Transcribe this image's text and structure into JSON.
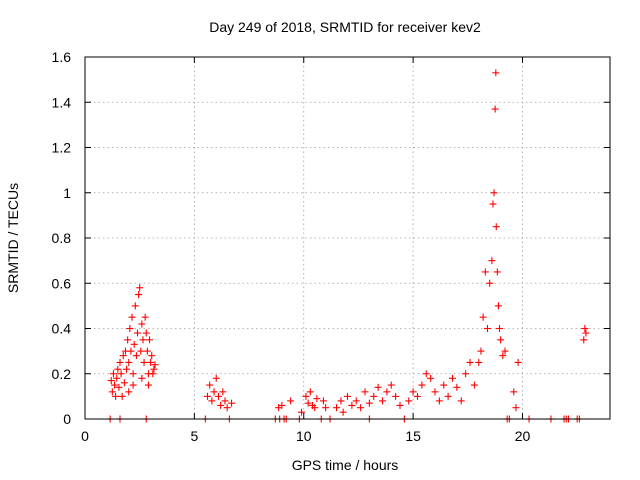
{
  "chart_data": {
    "type": "scatter",
    "title": "Day 249 of 2018, SRMTID for receiver kev2",
    "xlabel": "GPS time / hours",
    "ylabel": "SRMTID / TECUs",
    "xlim": [
      0,
      24
    ],
    "ylim": [
      0,
      1.6
    ],
    "x_ticks": [
      0,
      5,
      10,
      15,
      20
    ],
    "x_tick_labels": [
      "0",
      "5",
      "10",
      "15",
      "20"
    ],
    "y_ticks": [
      0,
      0.2,
      0.4,
      0.6,
      0.8,
      1.0,
      1.2,
      1.4,
      1.6
    ],
    "y_tick_labels": [
      "0",
      "0.2",
      "0.4",
      "0.6",
      "0.8",
      "1",
      "1.2",
      "1.4",
      "1.6"
    ],
    "grid": true,
    "marker": "+",
    "color": "#ff0000",
    "series": [
      {
        "name": "kev2",
        "points": [
          [
            1.15,
            0.0
          ],
          [
            1.2,
            0.17
          ],
          [
            1.25,
            0.12
          ],
          [
            1.3,
            0.2
          ],
          [
            1.35,
            0.15
          ],
          [
            1.4,
            0.1
          ],
          [
            1.45,
            0.18
          ],
          [
            1.5,
            0.22
          ],
          [
            1.55,
            0.14
          ],
          [
            1.6,
            0.0
          ],
          [
            1.6,
            0.25
          ],
          [
            1.65,
            0.2
          ],
          [
            1.7,
            0.1
          ],
          [
            1.75,
            0.28
          ],
          [
            1.8,
            0.16
          ],
          [
            1.85,
            0.3
          ],
          [
            1.9,
            0.22
          ],
          [
            1.95,
            0.35
          ],
          [
            2.0,
            0.25
          ],
          [
            2.05,
            0.4
          ],
          [
            2.1,
            0.3
          ],
          [
            2.15,
            0.45
          ],
          [
            2.2,
            0.2
          ],
          [
            2.25,
            0.33
          ],
          [
            2.3,
            0.5
          ],
          [
            2.35,
            0.28
          ],
          [
            2.4,
            0.38
          ],
          [
            2.45,
            0.55
          ],
          [
            2.5,
            0.58
          ],
          [
            2.55,
            0.3
          ],
          [
            2.6,
            0.42
          ],
          [
            2.65,
            0.35
          ],
          [
            2.7,
            0.25
          ],
          [
            2.75,
            0.45
          ],
          [
            2.8,
            0.0
          ],
          [
            2.8,
            0.38
          ],
          [
            2.85,
            0.3
          ],
          [
            2.9,
            0.2
          ],
          [
            2.95,
            0.35
          ],
          [
            3.0,
            0.25
          ],
          [
            3.05,
            0.28
          ],
          [
            3.1,
            0.2
          ],
          [
            3.15,
            0.22
          ],
          [
            3.2,
            0.24
          ],
          [
            2.0,
            0.12
          ],
          [
            2.2,
            0.15
          ],
          [
            2.6,
            0.18
          ],
          [
            2.9,
            0.15
          ],
          [
            5.5,
            0.0
          ],
          [
            5.6,
            0.1
          ],
          [
            5.7,
            0.15
          ],
          [
            5.8,
            0.08
          ],
          [
            5.9,
            0.12
          ],
          [
            6.0,
            0.18
          ],
          [
            6.1,
            0.1
          ],
          [
            6.2,
            0.06
          ],
          [
            6.3,
            0.12
          ],
          [
            6.4,
            0.08
          ],
          [
            6.5,
            0.05
          ],
          [
            6.6,
            0.0
          ],
          [
            6.7,
            0.07
          ],
          [
            8.7,
            0.0
          ],
          [
            8.85,
            0.05
          ],
          [
            8.9,
            0.0
          ],
          [
            9.0,
            0.06
          ],
          [
            9.1,
            0.0
          ],
          [
            9.2,
            0.0
          ],
          [
            9.4,
            0.08
          ],
          [
            9.8,
            0.0
          ],
          [
            9.9,
            0.03
          ],
          [
            10.1,
            0.1
          ],
          [
            10.2,
            0.07
          ],
          [
            10.3,
            0.12
          ],
          [
            10.4,
            0.06
          ],
          [
            10.5,
            0.05
          ],
          [
            10.6,
            0.09
          ],
          [
            10.8,
            0.0
          ],
          [
            10.9,
            0.08
          ],
          [
            11.0,
            0.05
          ],
          [
            11.2,
            0.0
          ],
          [
            11.5,
            0.05
          ],
          [
            11.7,
            0.08
          ],
          [
            11.8,
            0.03
          ],
          [
            12.0,
            0.1
          ],
          [
            12.2,
            0.06
          ],
          [
            12.4,
            0.08
          ],
          [
            12.6,
            0.05
          ],
          [
            12.8,
            0.12
          ],
          [
            13.0,
            0.0
          ],
          [
            13.0,
            0.07
          ],
          [
            13.2,
            0.1
          ],
          [
            13.4,
            0.14
          ],
          [
            13.6,
            0.08
          ],
          [
            13.8,
            0.12
          ],
          [
            14.0,
            0.15
          ],
          [
            14.2,
            0.1
          ],
          [
            14.4,
            0.06
          ],
          [
            14.6,
            0.0
          ],
          [
            14.8,
            0.08
          ],
          [
            15.0,
            0.12
          ],
          [
            15.2,
            0.1
          ],
          [
            15.4,
            0.15
          ],
          [
            15.6,
            0.2
          ],
          [
            15.8,
            0.18
          ],
          [
            16.0,
            0.12
          ],
          [
            16.2,
            0.08
          ],
          [
            16.4,
            0.15
          ],
          [
            16.6,
            0.1
          ],
          [
            16.8,
            0.18
          ],
          [
            17.0,
            0.14
          ],
          [
            17.2,
            0.08
          ],
          [
            17.4,
            0.2
          ],
          [
            17.6,
            0.25
          ],
          [
            17.8,
            0.15
          ],
          [
            18.0,
            0.25
          ],
          [
            18.1,
            0.3
          ],
          [
            18.2,
            0.45
          ],
          [
            18.3,
            0.65
          ],
          [
            18.4,
            0.4
          ],
          [
            18.5,
            0.6
          ],
          [
            18.6,
            0.7
          ],
          [
            18.65,
            0.95
          ],
          [
            18.7,
            1.0
          ],
          [
            18.75,
            1.37
          ],
          [
            18.78,
            1.53
          ],
          [
            18.8,
            0.85
          ],
          [
            18.85,
            0.65
          ],
          [
            18.9,
            0.5
          ],
          [
            18.95,
            0.4
          ],
          [
            19.0,
            0.35
          ],
          [
            19.1,
            0.28
          ],
          [
            19.2,
            0.3
          ],
          [
            19.3,
            0.0
          ],
          [
            19.4,
            0.0
          ],
          [
            19.6,
            0.12
          ],
          [
            19.7,
            0.05
          ],
          [
            19.8,
            0.25
          ],
          [
            20.3,
            0.0
          ],
          [
            21.3,
            0.0
          ],
          [
            21.9,
            0.0
          ],
          [
            22.0,
            0.0
          ],
          [
            22.1,
            0.0
          ],
          [
            22.5,
            0.0
          ],
          [
            22.6,
            0.0
          ],
          [
            22.8,
            0.35
          ],
          [
            22.85,
            0.4
          ],
          [
            22.9,
            0.38
          ]
        ]
      }
    ]
  }
}
